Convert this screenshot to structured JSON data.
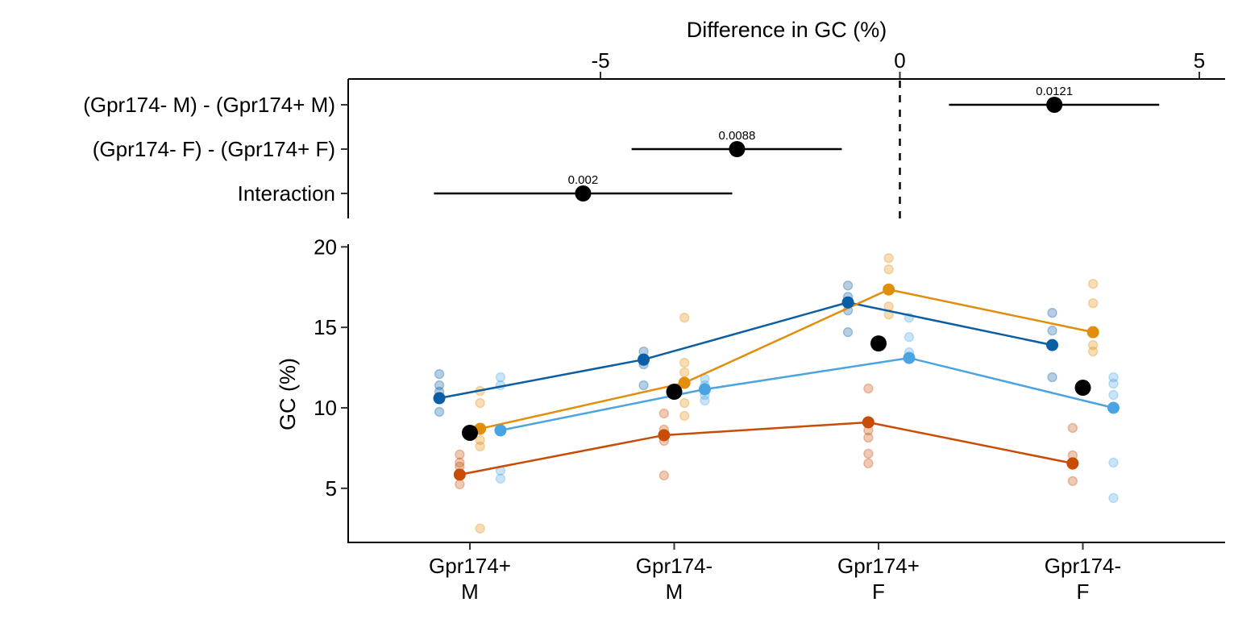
{
  "chart_data": [
    {
      "type": "scatter",
      "subtype": "forest-plot",
      "title": "",
      "xlabel": "Difference in GC (%)",
      "xlabel_position": "top",
      "xlim": [
        -8.8,
        5.5
      ],
      "xticks": [
        -5,
        0,
        5
      ],
      "xtick_labels": [
        "-5",
        "0",
        "5"
      ],
      "reference_line": {
        "x": 0,
        "style": "dashed"
      },
      "rows": [
        {
          "label": "(Gpr174- M) - (Gpr174+ M)",
          "estimate": 2.58,
          "ci_low": 0.82,
          "ci_high": 4.33,
          "p_value": "0.0121"
        },
        {
          "label": "(Gpr174- F) - (Gpr174+ F)",
          "estimate": -2.72,
          "ci_low": -4.48,
          "ci_high": -0.97,
          "p_value": "0.0088"
        },
        {
          "label": "Interaction",
          "estimate": -5.29,
          "ci_low": -7.78,
          "ci_high": -2.8,
          "p_value": "0.002"
        }
      ]
    },
    {
      "type": "line",
      "subtype": "dot-plot-with-group-means",
      "title": "",
      "xlabel": "",
      "ylabel": "GC (%)",
      "ylim": [
        1.65,
        20.2
      ],
      "yticks": [
        5,
        10,
        15,
        20
      ],
      "ytick_labels": [
        "5",
        "10",
        "15",
        "20"
      ],
      "categories": [
        {
          "line1": "Gpr174+",
          "line2": "M"
        },
        {
          "line1": "Gpr174-",
          "line2": "M"
        },
        {
          "line1": "Gpr174+",
          "line2": "F"
        },
        {
          "line1": "Gpr174-",
          "line2": "F"
        }
      ],
      "grand_means": [
        8.45,
        11.0,
        14.0,
        11.25
      ],
      "series": [
        {
          "name": "group-dark-blue",
          "color": "#0B5EA3",
          "offset": -1.5,
          "means": [
            10.6,
            13.0,
            16.55,
            13.9
          ],
          "points": [
            [
              12.1,
              11.4,
              11.0,
              9.75
            ],
            [
              13.5,
              12.9,
              12.7,
              11.4
            ],
            [
              17.6,
              16.9,
              16.05,
              14.7
            ],
            [
              15.9,
              14.8,
              11.9
            ]
          ]
        },
        {
          "name": "group-red-orange",
          "color": "#C84B06",
          "offset": -0.5,
          "means": [
            5.85,
            8.3,
            9.1,
            6.55
          ],
          "points": [
            [
              7.1,
              6.6,
              6.35,
              5.25
            ],
            [
              9.65,
              8.65,
              7.95,
              5.8
            ],
            [
              11.2,
              8.6,
              8.15,
              7.15,
              6.55
            ],
            [
              8.75,
              7.05,
              6.45,
              5.45
            ]
          ]
        },
        {
          "name": "group-orange",
          "color": "#E08E0B",
          "offset": 0.5,
          "means": [
            8.7,
            11.55,
            17.35,
            14.7
          ],
          "points": [
            [
              11.05,
              10.3,
              8.0,
              7.6,
              2.5
            ],
            [
              15.6,
              12.8,
              12.2,
              10.3,
              9.5
            ],
            [
              19.3,
              18.6,
              16.3,
              15.8
            ],
            [
              17.7,
              16.5,
              13.9,
              13.5
            ]
          ]
        },
        {
          "name": "group-light-blue",
          "color": "#4BA4E2",
          "offset": 1.5,
          "means": [
            8.6,
            11.15,
            13.1,
            10.0
          ],
          "points": [
            [
              11.9,
              11.4,
              6.1,
              5.6
            ],
            [
              11.8,
              11.4,
              10.8,
              10.45
            ],
            [
              15.6,
              14.4,
              13.45
            ],
            [
              11.9,
              11.5,
              10.8,
              6.6,
              4.4
            ]
          ]
        }
      ]
    }
  ]
}
